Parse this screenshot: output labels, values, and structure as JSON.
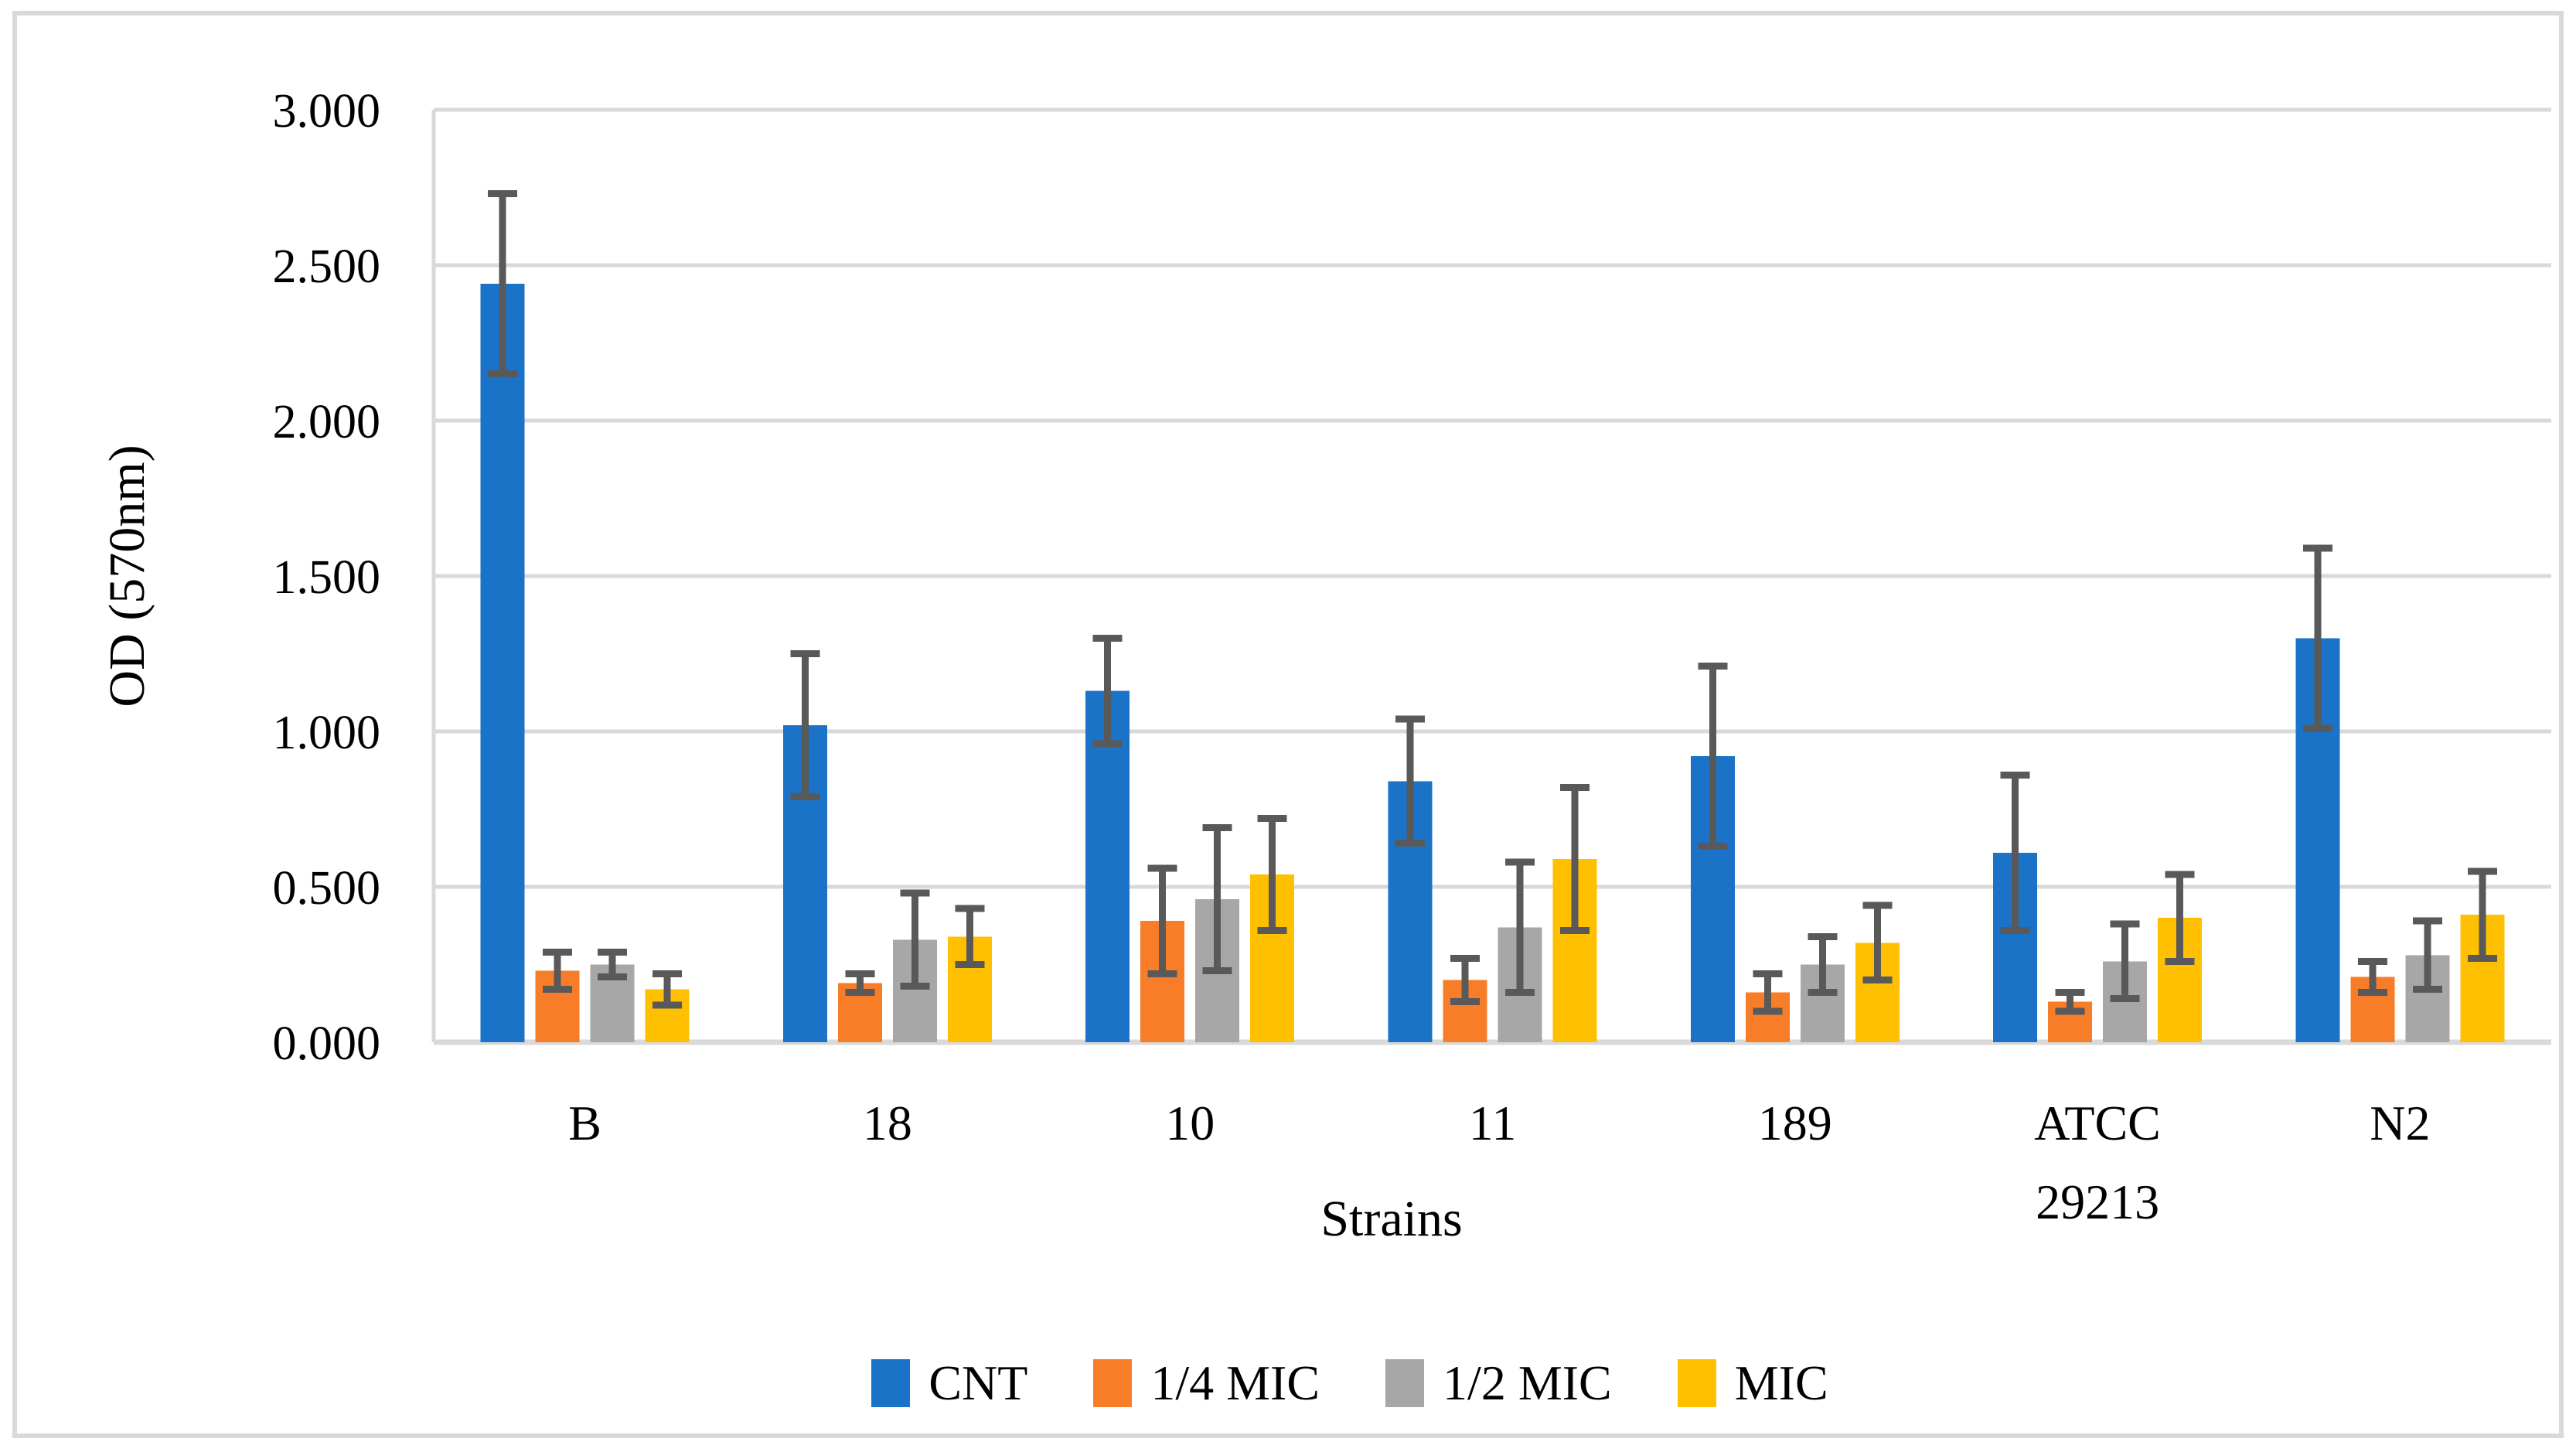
{
  "chart_data": {
    "type": "bar",
    "subtype": "grouped-vertical-with-error-bars",
    "title": "",
    "xlabel": "Strains",
    "ylabel": "OD (570nm)",
    "ylim": [
      0,
      3
    ],
    "y_ticks": [
      "0.000",
      "0.500",
      "1.000",
      "1.500",
      "2.000",
      "2.500",
      "3.000"
    ],
    "grid": "horizontal",
    "legend_position": "bottom",
    "categories": [
      "B",
      "18",
      "10",
      "11",
      "189",
      "ATCC 29213",
      "N2"
    ],
    "series": [
      {
        "name": "CNT",
        "color": "#1B73C7",
        "values": [
          2.44,
          1.02,
          1.13,
          0.84,
          0.92,
          0.61,
          1.3
        ],
        "errors": [
          0.29,
          0.23,
          0.17,
          0.2,
          0.29,
          0.25,
          0.29
        ]
      },
      {
        "name": "1/4 MIC",
        "color": "#F87D28",
        "values": [
          0.23,
          0.19,
          0.39,
          0.2,
          0.16,
          0.13,
          0.21
        ],
        "errors": [
          0.06,
          0.03,
          0.17,
          0.07,
          0.06,
          0.03,
          0.05
        ]
      },
      {
        "name": "1/2 MIC",
        "color": "#A7A7A7",
        "values": [
          0.25,
          0.33,
          0.46,
          0.37,
          0.25,
          0.26,
          0.28
        ],
        "errors": [
          0.04,
          0.15,
          0.23,
          0.21,
          0.09,
          0.12,
          0.11
        ]
      },
      {
        "name": "MIC",
        "color": "#FEC000",
        "values": [
          0.17,
          0.34,
          0.54,
          0.59,
          0.32,
          0.4,
          0.41
        ],
        "errors": [
          0.05,
          0.09,
          0.18,
          0.23,
          0.12,
          0.14,
          0.14
        ]
      }
    ],
    "colors": {
      "gridline": "#D9D9D9",
      "axis_line": "#D9D9D9",
      "error_bar": "#595959",
      "text": "#000000",
      "background": "#FFFFFF"
    }
  }
}
